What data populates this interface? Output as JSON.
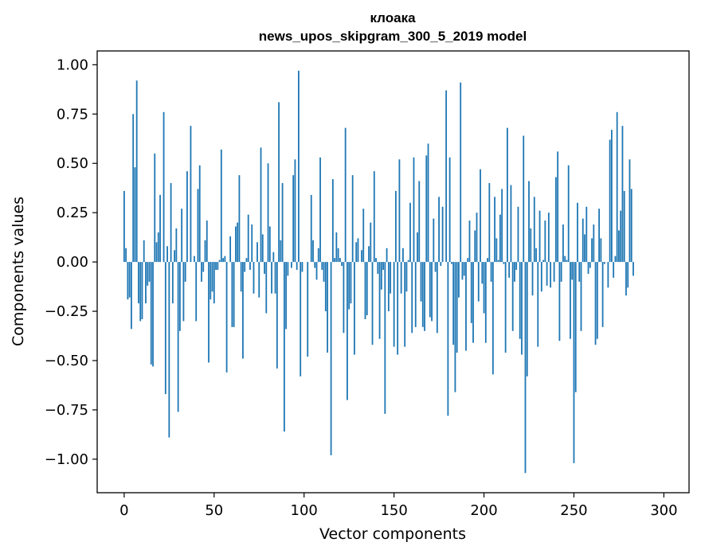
{
  "chart_data": {
    "type": "bar",
    "title_line1": "клоака",
    "title_line2": "news_upos_skipgram_300_5_2019 model",
    "xlabel": "Vector components",
    "ylabel": "Components values",
    "xlim": [
      -15,
      314
    ],
    "ylim": [
      -1.17,
      1.07
    ],
    "xticks": [
      0,
      50,
      100,
      150,
      200,
      250,
      300
    ],
    "xtick_labels": [
      "0",
      "50",
      "100",
      "150",
      "200",
      "250",
      "300"
    ],
    "yticks": [
      -1.0,
      -0.75,
      -0.5,
      -0.25,
      0.0,
      0.25,
      0.5,
      0.75,
      1.0
    ],
    "ytick_labels": [
      "−1.00",
      "−0.75",
      "−0.50",
      "−0.25",
      "0.00",
      "0.25",
      "0.50",
      "0.75",
      "1.00"
    ],
    "bar_color": "#1f77b4",
    "values": [
      0.36,
      0.07,
      -0.19,
      -0.18,
      -0.34,
      0.75,
      0.48,
      0.92,
      -0.21,
      -0.3,
      -0.29,
      0.11,
      -0.21,
      -0.12,
      -0.1,
      -0.52,
      -0.53,
      0.55,
      0.1,
      0.15,
      0.34,
      0.0,
      0.76,
      -0.67,
      0.08,
      -0.89,
      0.4,
      -0.21,
      0.06,
      0.17,
      -0.76,
      -0.35,
      0.27,
      -0.3,
      -0.1,
      0.46,
      0.0,
      0.69,
      0.0,
      0.03,
      -0.3,
      0.37,
      0.49,
      -0.1,
      -0.05,
      0.11,
      0.21,
      -0.51,
      -0.19,
      -0.15,
      -0.21,
      -0.04,
      -0.04,
      0.01,
      0.57,
      0.02,
      0.03,
      -0.56,
      0.0,
      0.13,
      -0.33,
      -0.33,
      0.18,
      0.2,
      0.44,
      -0.15,
      -0.49,
      -0.05,
      0.02,
      0.24,
      -0.04,
      0.19,
      -0.16,
      0.0,
      0.1,
      -0.18,
      0.58,
      0.14,
      -0.06,
      -0.26,
      0.5,
      0.18,
      -0.16,
      0.05,
      -0.16,
      -0.54,
      0.81,
      0.11,
      0.4,
      -0.86,
      -0.34,
      -0.07,
      0.0,
      -0.03,
      0.44,
      0.52,
      -0.04,
      0.97,
      -0.58,
      -0.05,
      0.0,
      0.0,
      -0.48,
      0.0,
      0.34,
      0.11,
      -0.03,
      -0.09,
      0.07,
      0.53,
      -0.04,
      -0.1,
      -0.25,
      -0.46,
      0.0,
      -0.98,
      0.42,
      0.02,
      0.15,
      0.07,
      0.02,
      -0.02,
      -0.36,
      0.68,
      -0.7,
      -0.24,
      -0.21,
      0.44,
      -0.47,
      0.1,
      0.12,
      0.0,
      0.06,
      0.27,
      -0.29,
      -0.27,
      0.08,
      0.2,
      -0.42,
      0.46,
      0.02,
      -0.06,
      -0.39,
      -0.14,
      -0.04,
      -0.77,
      0.07,
      -0.25,
      -0.16,
      0.0,
      -0.43,
      0.36,
      -0.47,
      0.52,
      -0.16,
      0.07,
      -0.43,
      -0.15,
      0.01,
      0.3,
      -0.36,
      0.53,
      -0.33,
      0.15,
      0.41,
      -0.2,
      -0.33,
      -0.35,
      0.54,
      0.6,
      -0.28,
      -0.3,
      0.22,
      -0.05,
      -0.36,
      0.33,
      -0.02,
      0.28,
      0.0,
      0.87,
      -0.78,
      0.53,
      -0.01,
      -0.42,
      -0.66,
      -0.46,
      -0.18,
      0.91,
      -0.09,
      -0.07,
      -0.45,
      0.02,
      0.21,
      -0.31,
      -0.41,
      0.16,
      0.25,
      -0.2,
      0.47,
      -0.11,
      -0.26,
      -0.41,
      0.02,
      0.4,
      -0.1,
      -0.57,
      0.33,
      0.12,
      0.01,
      0.24,
      0.37,
      -0.01,
      -0.46,
      0.68,
      -0.08,
      0.39,
      -0.35,
      -0.1,
      -0.04,
      0.28,
      -0.39,
      -0.47,
      0.64,
      -1.07,
      -0.58,
      0.41,
      0.17,
      -0.17,
      0.33,
      0.07,
      -0.43,
      0.26,
      -0.15,
      0.01,
      0.21,
      -0.12,
      0.25,
      -0.13,
      0.0,
      -0.1,
      0.43,
      0.56,
      -0.4,
      -0.1,
      0.19,
      0.03,
      0.01,
      0.49,
      -0.39,
      -0.09,
      -1.02,
      -0.66,
      0.3,
      -0.1,
      -0.35,
      0.22,
      0.14,
      0.28,
      -0.06,
      -0.03,
      0.12,
      0.19,
      -0.42,
      -0.39,
      0.27,
      0.12,
      -0.33,
      -0.01,
      0.0,
      -0.13,
      0.62,
      0.67,
      -0.08,
      0.03,
      0.76,
      0.16,
      0.26,
      0.69,
      0.36,
      -0.17,
      -0.13,
      0.52,
      0.37,
      -0.07
    ]
  }
}
